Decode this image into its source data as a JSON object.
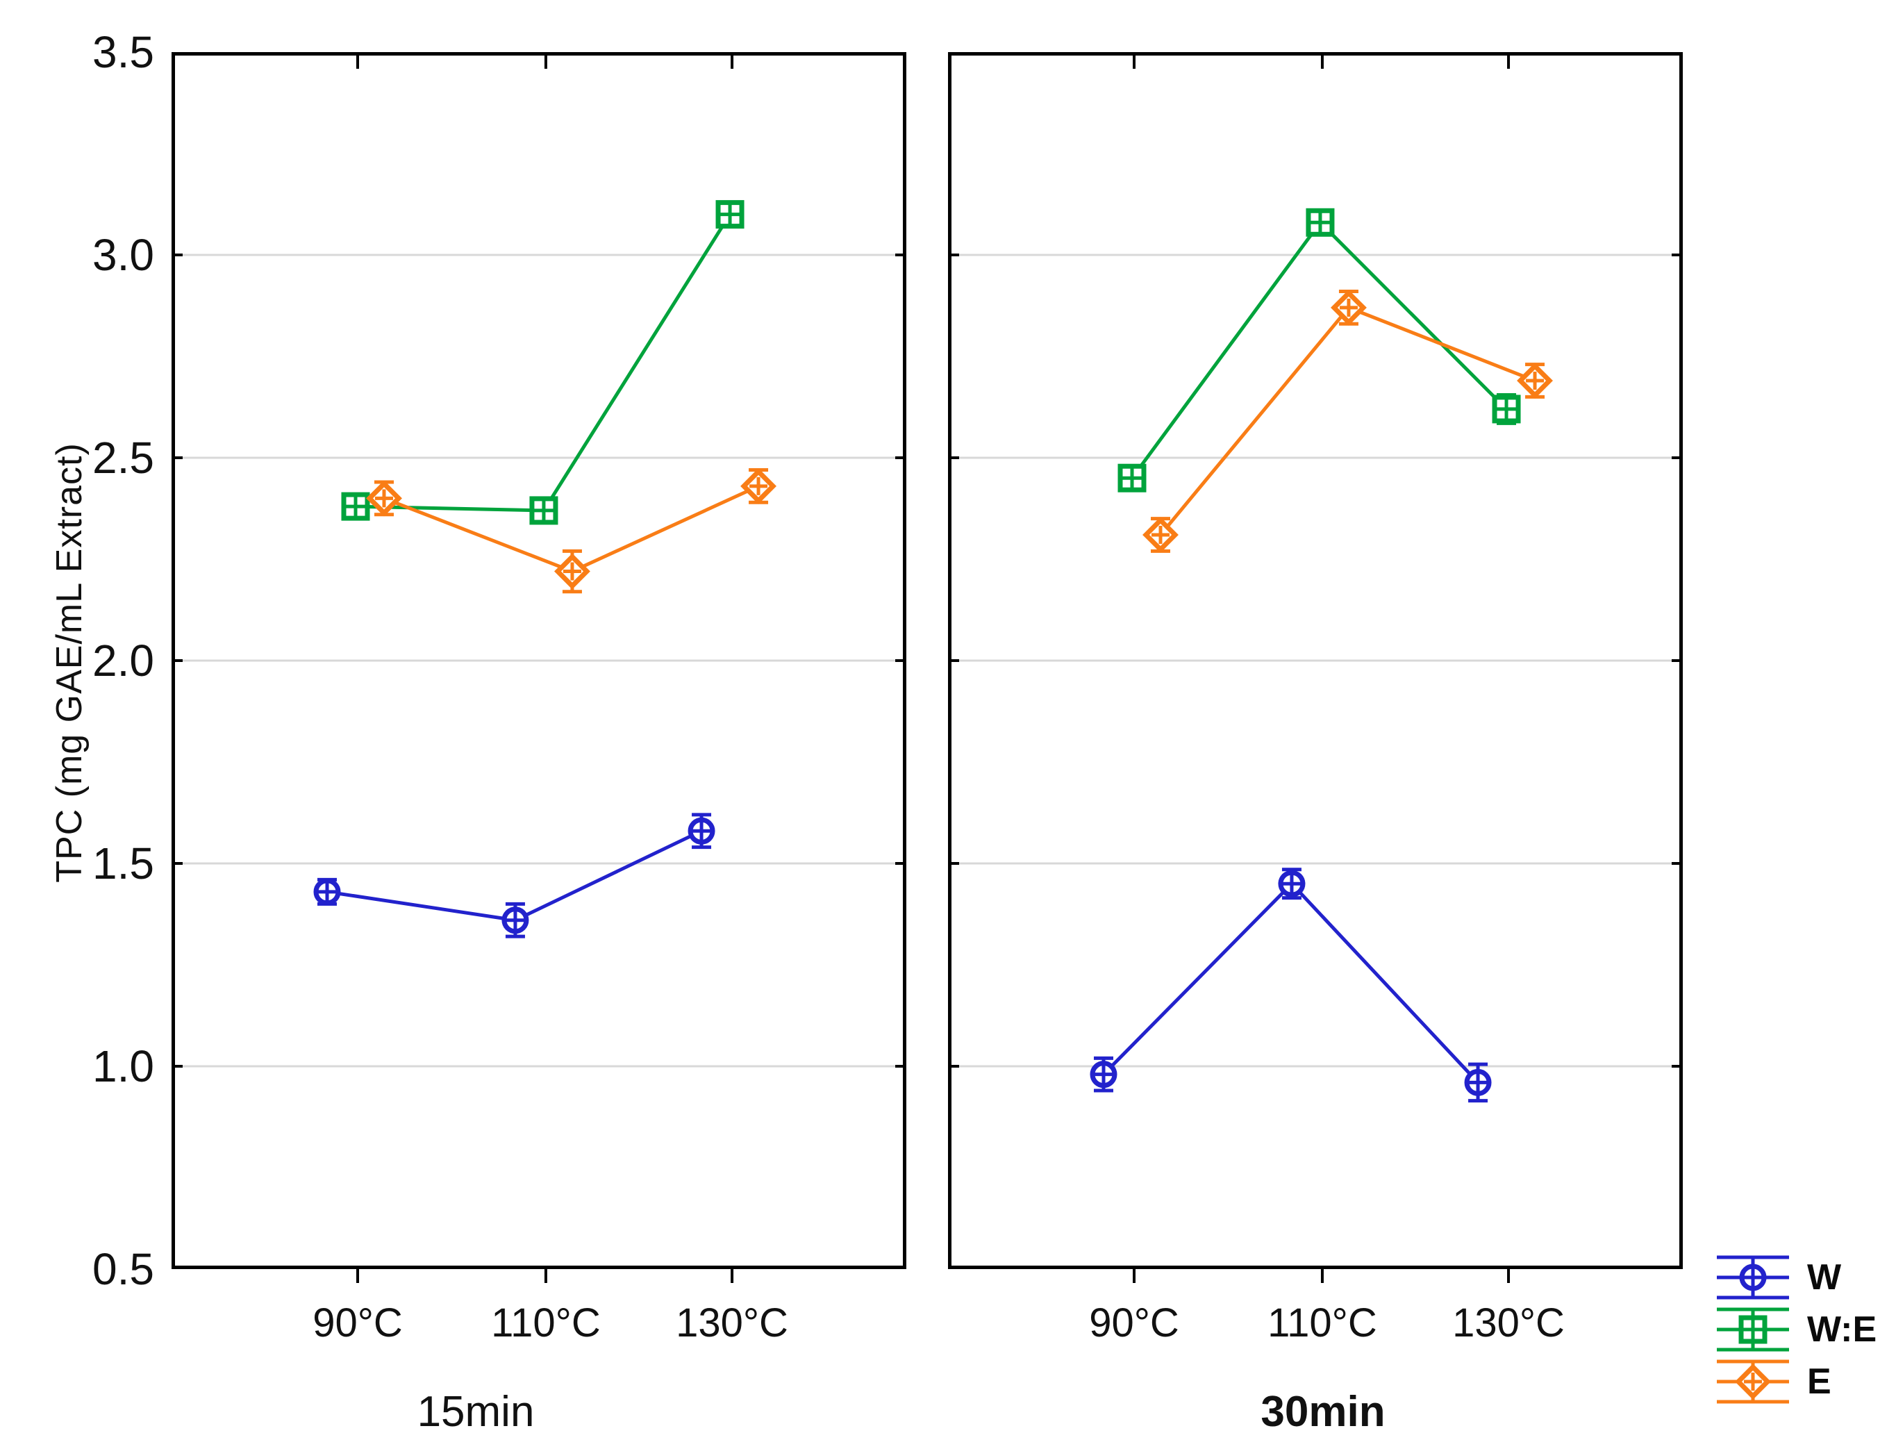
{
  "chart_data": {
    "type": "line",
    "title": "",
    "ylabel": "TPC (mg GAE/mL Extract)",
    "xlabel": "",
    "ylim": [
      0.5,
      3.5
    ],
    "y_tick_labels": [
      "3.5",
      "3.0",
      "2.5",
      "2.0",
      "1.5",
      "1.0",
      "0.5"
    ],
    "y_gridline_values": [
      3.0,
      2.5,
      2.0,
      1.5,
      1.0
    ],
    "grid": "horizontal",
    "categories": [
      "90°C",
      "110°C",
      "130°C"
    ],
    "legend_position": "bottom-right",
    "colors": {
      "frame": "#000000",
      "gridline": "#d8d8d8",
      "text": "#111111"
    },
    "panels": [
      {
        "label": "15min",
        "series": [
          {
            "name": "W",
            "marker": "circle",
            "color": "#2222cc",
            "values": [
              1.43,
              1.36,
              1.58
            ],
            "errors": [
              0.03,
              0.04,
              0.04
            ]
          },
          {
            "name": "W:E",
            "marker": "square",
            "color": "#00a33c",
            "values": [
              2.38,
              2.37,
              3.1
            ],
            "errors": [
              0.03,
              0.03,
              0.03
            ]
          },
          {
            "name": "E",
            "marker": "diamond",
            "color": "#f97d16",
            "values": [
              2.4,
              2.22,
              2.43
            ],
            "errors": [
              0.04,
              0.05,
              0.04
            ]
          }
        ]
      },
      {
        "label": "30min",
        "series": [
          {
            "name": "W",
            "marker": "circle",
            "color": "#2222cc",
            "values": [
              0.98,
              1.45,
              0.96
            ],
            "errors": [
              0.04,
              0.035,
              0.045
            ]
          },
          {
            "name": "W:E",
            "marker": "square",
            "color": "#00a33c",
            "values": [
              2.45,
              3.08,
              2.62
            ],
            "errors": [
              0.03,
              0.025,
              0.035
            ]
          },
          {
            "name": "E",
            "marker": "diamond",
            "color": "#f97d16",
            "values": [
              2.31,
              2.87,
              2.69
            ],
            "errors": [
              0.04,
              0.04,
              0.04
            ]
          }
        ]
      }
    ],
    "legend": [
      {
        "label": "W",
        "marker": "circle",
        "color": "#2222cc"
      },
      {
        "label": "W:E",
        "marker": "square",
        "color": "#00a33c"
      },
      {
        "label": "E",
        "marker": "diamond",
        "color": "#f97d16"
      }
    ]
  }
}
